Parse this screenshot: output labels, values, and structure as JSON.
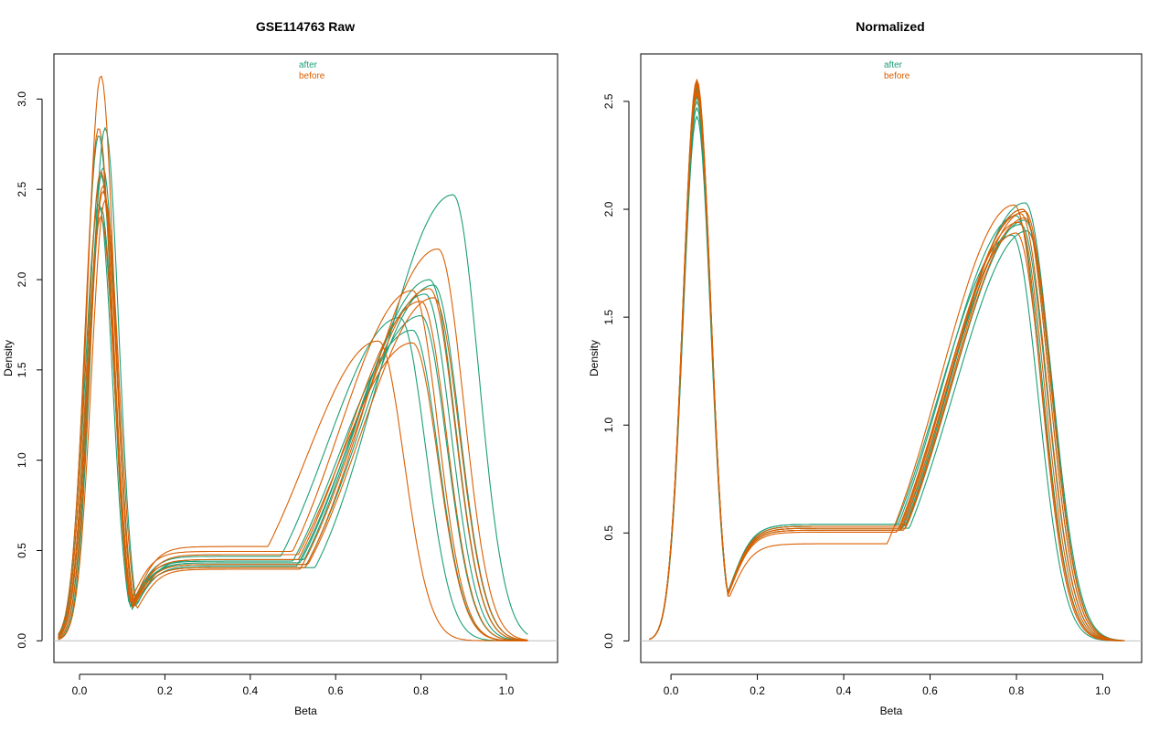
{
  "colors": {
    "after": "#1b9e77",
    "before": "#d95f02",
    "zero_line": "#bebebe",
    "frame": "#000000"
  },
  "chart_data": [
    {
      "type": "line",
      "title": "GSE114763 Raw",
      "xlabel": "Beta",
      "ylabel": "Density",
      "xlim": [
        -0.06,
        1.12
      ],
      "ylim": [
        -0.12,
        3.25
      ],
      "xticks": [
        0.0,
        0.2,
        0.4,
        0.6,
        0.8,
        1.0
      ],
      "xtick_labels": [
        "0.0",
        "0.2",
        "0.4",
        "0.6",
        "0.8",
        "1.0"
      ],
      "yticks": [
        0.0,
        0.5,
        1.0,
        1.5,
        2.0,
        2.5,
        3.0
      ],
      "ytick_labels": [
        "0.0",
        "0.5",
        "1.0",
        "1.5",
        "2.0",
        "2.5",
        "3.0"
      ],
      "grid": false,
      "legend": {
        "position": "top-center",
        "entries": [
          "after",
          "before"
        ]
      },
      "series": [
        {
          "group": "after",
          "peak1_x": 0.045,
          "peak1_y": 2.8,
          "min_x": 0.2,
          "min_y": 0.47,
          "peak2_x": 0.83,
          "peak2_y": 1.97
        },
        {
          "group": "after",
          "peak1_x": 0.055,
          "peak1_y": 2.62,
          "min_x": 0.21,
          "min_y": 0.46,
          "peak2_x": 0.8,
          "peak2_y": 1.8
        },
        {
          "group": "after",
          "peak1_x": 0.05,
          "peak1_y": 2.4,
          "min_x": 0.22,
          "min_y": 0.45,
          "peak2_x": 0.875,
          "peak2_y": 2.47
        },
        {
          "group": "after",
          "peak1_x": 0.06,
          "peak1_y": 2.84,
          "min_x": 0.2,
          "min_y": 0.5,
          "peak2_x": 0.82,
          "peak2_y": 2.0
        },
        {
          "group": "after",
          "peak1_x": 0.05,
          "peak1_y": 2.35,
          "min_x": 0.2,
          "min_y": 0.52,
          "peak2_x": 0.75,
          "peak2_y": 1.79
        },
        {
          "group": "after",
          "peak1_x": 0.05,
          "peak1_y": 2.58,
          "min_x": 0.21,
          "min_y": 0.48,
          "peak2_x": 0.81,
          "peak2_y": 1.92
        },
        {
          "group": "after",
          "peak1_x": 0.045,
          "peak1_y": 2.42,
          "min_x": 0.2,
          "min_y": 0.49,
          "peak2_x": 0.78,
          "peak2_y": 1.72
        },
        {
          "group": "before",
          "peak1_x": 0.05,
          "peak1_y": 3.13,
          "min_x": 0.21,
          "min_y": 0.45,
          "peak2_x": 0.84,
          "peak2_y": 2.17
        },
        {
          "group": "before",
          "peak1_x": 0.055,
          "peak1_y": 2.52,
          "min_x": 0.2,
          "min_y": 0.58,
          "peak2_x": 0.7,
          "peak2_y": 1.66
        },
        {
          "group": "before",
          "peak1_x": 0.045,
          "peak1_y": 2.84,
          "min_x": 0.2,
          "min_y": 0.55,
          "peak2_x": 0.78,
          "peak2_y": 1.94
        },
        {
          "group": "before",
          "peak1_x": 0.06,
          "peak1_y": 2.44,
          "min_x": 0.22,
          "min_y": 0.44,
          "peak2_x": 0.82,
          "peak2_y": 1.95
        },
        {
          "group": "before",
          "peak1_x": 0.05,
          "peak1_y": 2.35,
          "min_x": 0.21,
          "min_y": 0.5,
          "peak2_x": 0.8,
          "peak2_y": 1.88
        },
        {
          "group": "before",
          "peak1_x": 0.055,
          "peak1_y": 2.49,
          "min_x": 0.2,
          "min_y": 0.53,
          "peak2_x": 0.78,
          "peak2_y": 1.65
        },
        {
          "group": "before",
          "peak1_x": 0.05,
          "peak1_y": 2.6,
          "min_x": 0.21,
          "min_y": 0.47,
          "peak2_x": 0.83,
          "peak2_y": 1.9
        }
      ]
    },
    {
      "type": "line",
      "title": "Normalized",
      "xlabel": "Beta",
      "ylabel": "Density",
      "xlim": [
        -0.07,
        1.09
      ],
      "ylim": [
        -0.1,
        2.72
      ],
      "xticks": [
        0.0,
        0.2,
        0.4,
        0.6,
        0.8,
        1.0
      ],
      "xtick_labels": [
        "0.0",
        "0.2",
        "0.4",
        "0.6",
        "0.8",
        "1.0"
      ],
      "yticks": [
        0.0,
        0.5,
        1.0,
        1.5,
        2.0,
        2.5
      ],
      "ytick_labels": [
        "0.0",
        "0.5",
        "1.0",
        "1.5",
        "2.0",
        "2.5"
      ],
      "grid": false,
      "legend": {
        "position": "top-center",
        "entries": [
          "after",
          "before"
        ]
      },
      "series": [
        {
          "group": "after",
          "peak1_x": 0.06,
          "peak1_y": 2.43,
          "min_x": 0.22,
          "min_y": 0.6,
          "peak2_x": 0.82,
          "peak2_y": 1.95
        },
        {
          "group": "after",
          "peak1_x": 0.06,
          "peak1_y": 2.47,
          "min_x": 0.23,
          "min_y": 0.58,
          "peak2_x": 0.815,
          "peak2_y": 2.0
        },
        {
          "group": "after",
          "peak1_x": 0.06,
          "peak1_y": 2.55,
          "min_x": 0.22,
          "min_y": 0.59,
          "peak2_x": 0.82,
          "peak2_y": 2.03
        },
        {
          "group": "after",
          "peak1_x": 0.06,
          "peak1_y": 2.58,
          "min_x": 0.23,
          "min_y": 0.57,
          "peak2_x": 0.81,
          "peak2_y": 1.93
        },
        {
          "group": "after",
          "peak1_x": 0.06,
          "peak1_y": 2.52,
          "min_x": 0.22,
          "min_y": 0.6,
          "peak2_x": 0.8,
          "peak2_y": 1.97
        },
        {
          "group": "after",
          "peak1_x": 0.06,
          "peak1_y": 2.56,
          "min_x": 0.23,
          "min_y": 0.58,
          "peak2_x": 0.825,
          "peak2_y": 1.9
        },
        {
          "group": "after",
          "peak1_x": 0.06,
          "peak1_y": 2.5,
          "min_x": 0.22,
          "min_y": 0.59,
          "peak2_x": 0.79,
          "peak2_y": 1.88
        },
        {
          "group": "before",
          "peak1_x": 0.06,
          "peak1_y": 2.6,
          "min_x": 0.23,
          "min_y": 0.5,
          "peak2_x": 0.795,
          "peak2_y": 2.02
        },
        {
          "group": "before",
          "peak1_x": 0.06,
          "peak1_y": 2.57,
          "min_x": 0.22,
          "min_y": 0.57,
          "peak2_x": 0.81,
          "peak2_y": 1.98
        },
        {
          "group": "before",
          "peak1_x": 0.06,
          "peak1_y": 2.54,
          "min_x": 0.23,
          "min_y": 0.58,
          "peak2_x": 0.82,
          "peak2_y": 1.96
        },
        {
          "group": "before",
          "peak1_x": 0.06,
          "peak1_y": 2.59,
          "min_x": 0.22,
          "min_y": 0.56,
          "peak2_x": 0.8,
          "peak2_y": 1.89
        },
        {
          "group": "before",
          "peak1_x": 0.06,
          "peak1_y": 2.53,
          "min_x": 0.23,
          "min_y": 0.59,
          "peak2_x": 0.815,
          "peak2_y": 2.0
        },
        {
          "group": "before",
          "peak1_x": 0.06,
          "peak1_y": 2.58,
          "min_x": 0.22,
          "min_y": 0.58,
          "peak2_x": 0.805,
          "peak2_y": 1.94
        },
        {
          "group": "before",
          "peak1_x": 0.06,
          "peak1_y": 2.55,
          "min_x": 0.23,
          "min_y": 0.57,
          "peak2_x": 0.82,
          "peak2_y": 1.99
        }
      ]
    }
  ]
}
